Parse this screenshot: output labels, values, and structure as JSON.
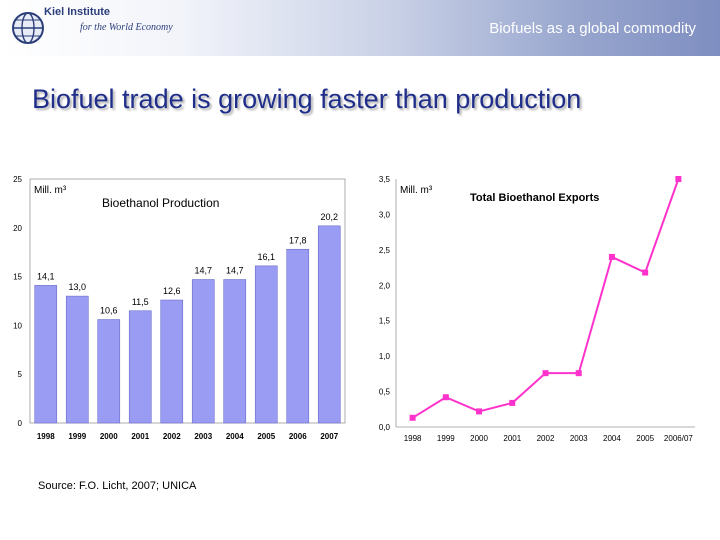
{
  "header": {
    "institute_name": "Kiel Institute",
    "institute_subtitle": "for the World Economy",
    "topic": "Biofuels as a global commodity"
  },
  "slide": {
    "title": "Biofuel trade is growing faster than production",
    "source": "Source: F.O. Licht, 2007; UNICA"
  },
  "colors": {
    "bar": "#9a9cf4",
    "line": "#ff33cc",
    "title": "#1f2e8a"
  },
  "chart_data": [
    {
      "type": "bar",
      "title": "Bioethanol Production",
      "unit_label": "Mill. m³",
      "categories": [
        "1998",
        "1999",
        "2000",
        "2001",
        "2002",
        "2003",
        "2004",
        "2005",
        "2006",
        "2007"
      ],
      "values": [
        14.1,
        13.0,
        10.6,
        11.5,
        12.6,
        14.7,
        14.7,
        16.1,
        17.8,
        20.2
      ],
      "value_labels": [
        "14,1",
        "13,0",
        "10,6",
        "11,5",
        "12,6",
        "14,7",
        "14,7",
        "16,1",
        "17,8",
        "20,2"
      ],
      "ylim": [
        0,
        25
      ],
      "yticks": [
        "0",
        "5",
        "10",
        "15",
        "20",
        "25"
      ],
      "grid": false
    },
    {
      "type": "line",
      "title": "Total Bioethanol Exports",
      "unit_label": "Mill. m³",
      "categories": [
        "1998",
        "1999",
        "2000",
        "2001",
        "2002",
        "2003",
        "2004",
        "2005",
        "2006/07"
      ],
      "values": [
        0.13,
        0.42,
        0.22,
        0.34,
        0.76,
        0.76,
        2.4,
        2.18,
        3.5
      ],
      "ylim": [
        0,
        3.5
      ],
      "yticks": [
        "0,0",
        "0,5",
        "1,0",
        "1,5",
        "2,0",
        "2,5",
        "3,0",
        "3,5"
      ],
      "grid": false
    }
  ]
}
